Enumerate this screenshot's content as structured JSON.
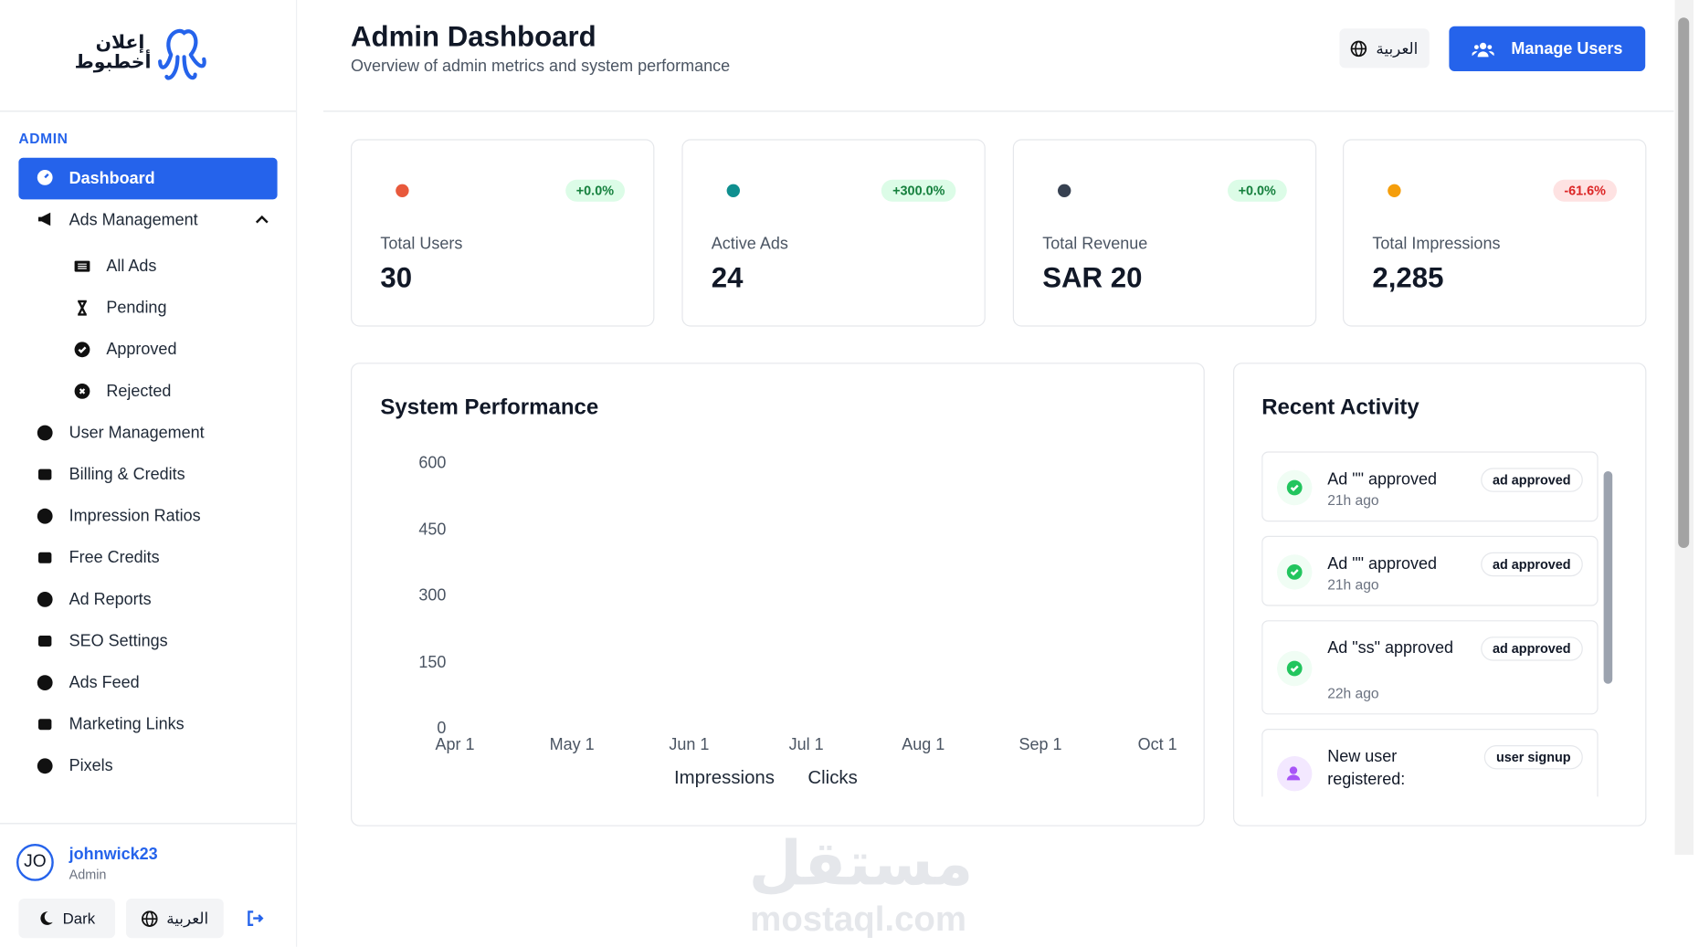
{
  "brand": {
    "line1": "إعلان",
    "line2": "أخطبوط"
  },
  "sidebar": {
    "section": "ADMIN",
    "active": "Dashboard",
    "group": "Ads Management",
    "submenu": [
      "All Ads",
      "Pending",
      "Approved",
      "Rejected"
    ],
    "items": [
      "User Management",
      "Billing & Credits",
      "Impression Ratios",
      "Free Credits",
      "Ad Reports",
      "SEO Settings",
      "Ads Feed",
      "Marketing Links",
      "Pixels"
    ]
  },
  "user": {
    "initials": "JO",
    "name": "johnwick23",
    "role": "Admin",
    "theme": "Dark",
    "language": "العربية"
  },
  "header": {
    "title": "Admin Dashboard",
    "subtitle": "Overview of admin metrics and system performance",
    "language": "العربية",
    "manage": "Manage Users"
  },
  "stats": [
    {
      "label": "Total Users",
      "value": "30",
      "change": "+0.0%"
    },
    {
      "label": "Active Ads",
      "value": "24",
      "change": "+300.0%"
    },
    {
      "label": "Total Revenue",
      "value": "SAR 20",
      "change": "+0.0%"
    },
    {
      "label": "Total Impressions",
      "value": "2,285",
      "change": "-61.6%"
    }
  ],
  "performance": {
    "title": "System Performance",
    "ylim": [
      0,
      600
    ],
    "yticks": [
      0,
      150,
      300,
      450,
      600
    ],
    "x": [
      "Apr 1",
      "May 1",
      "Jun 1",
      "Jul 1",
      "Aug 1",
      "Sep 1",
      "Oct 1"
    ],
    "legend": [
      "Impressions",
      "Clicks"
    ]
  },
  "activity": {
    "title": "Recent Activity",
    "items": [
      {
        "title": "Ad \"\" approved",
        "time": "21h ago",
        "tag": "ad approved"
      },
      {
        "title": "Ad \"\" approved",
        "time": "21h ago",
        "tag": "ad approved"
      },
      {
        "title": "Ad \"ss\" approved",
        "time": "22h ago",
        "tag": "ad approved"
      },
      {
        "title": "New user registered:",
        "tag": "user signup"
      }
    ]
  },
  "watermark": {
    "arabic": "مستقل",
    "latin": "mostaql.com"
  }
}
